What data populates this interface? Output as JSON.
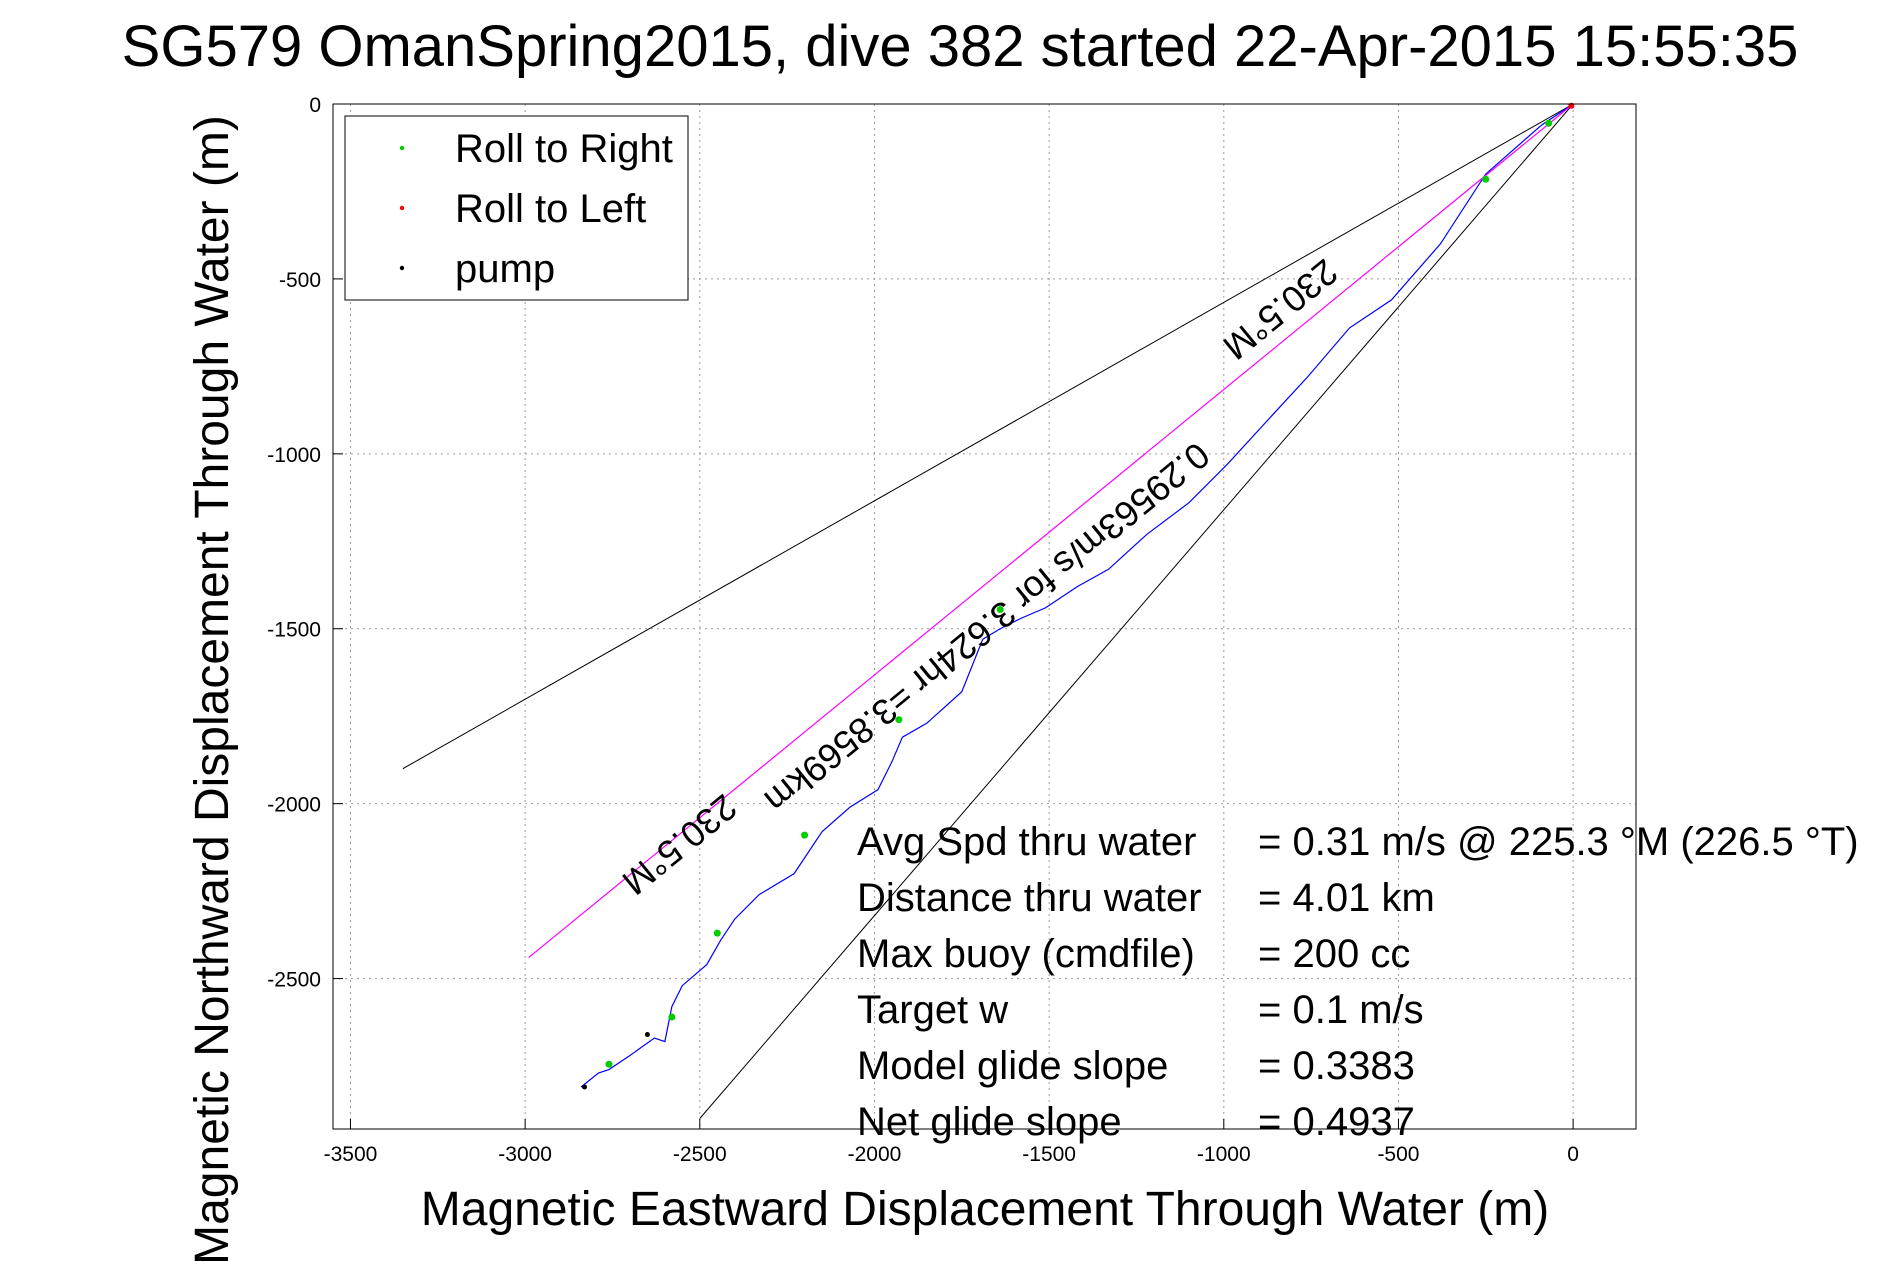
{
  "chart_data": {
    "type": "line",
    "title": "SG579 OmanSpring2015, dive 382 started 22-Apr-2015 15:55:35",
    "xlabel": "Magnetic Eastward Displacement Through Water (m)",
    "ylabel": "Magnetic Northward Displacement Through Water (m)",
    "xlim": [
      -3550,
      180
    ],
    "ylim": [
      -2930,
      0
    ],
    "xticks": [
      -3500,
      -3000,
      -2500,
      -2000,
      -1500,
      -1000,
      -500,
      0
    ],
    "yticks": [
      0,
      -500,
      -1000,
      -1500,
      -2000,
      -2500
    ],
    "grid": true,
    "legend": {
      "placement": "top-left",
      "entries": [
        {
          "label": "Roll to Right",
          "color": "#00cc00"
        },
        {
          "label": "Roll to Left",
          "color": "#ff0000"
        },
        {
          "label": "pump",
          "color": "#000000"
        }
      ]
    },
    "series": [
      {
        "color": "#0000ff",
        "x": [
          0,
          -90,
          -250,
          -380,
          -520,
          -640,
          -760,
          -880,
          -990,
          -1100,
          -1220,
          -1330,
          -1420,
          -1510,
          -1580,
          -1640,
          -1690,
          -1750,
          -1850,
          -1920,
          -1950,
          -1990,
          -2070,
          -2150,
          -2190,
          -2230,
          -2330,
          -2400,
          -2440,
          -2480,
          -2550,
          -2580,
          -2600,
          -2630,
          -2700,
          -2760,
          -2790,
          -2840
        ],
        "y": [
          0,
          -60,
          -200,
          -400,
          -560,
          -640,
          -780,
          -910,
          -1030,
          -1140,
          -1230,
          -1330,
          -1380,
          -1440,
          -1470,
          -1500,
          -1530,
          -1680,
          -1770,
          -1810,
          -1880,
          -1960,
          -2010,
          -2080,
          -2140,
          -2200,
          -2260,
          -2330,
          -2390,
          -2460,
          -2520,
          -2580,
          -2680,
          -2670,
          -2720,
          -2760,
          -2770,
          -2810
        ]
      },
      {
        "color": "#ff00ff",
        "x": [
          0,
          -2990
        ],
        "y": [
          0,
          -2440
        ]
      }
    ],
    "markers": {
      "roll_right": {
        "color": "#00cc00",
        "x": [
          -70,
          -250,
          -1640,
          -1930,
          -2200,
          -2450,
          -2580,
          -2760
        ],
        "y": [
          -55,
          -215,
          -1445,
          -1760,
          -2090,
          -2370,
          -2610,
          -2745
        ]
      },
      "roll_left": {
        "color": "#ff0000",
        "x": [
          -5
        ],
        "y": [
          -5
        ]
      },
      "pump": {
        "color": "#000000",
        "x": [
          -2830,
          -2650
        ],
        "y": [
          -2810,
          -2660
        ]
      }
    },
    "reference_lines": [
      {
        "color": "#000000",
        "x": [
          0,
          -3350
        ],
        "y": [
          0,
          -1900
        ]
      },
      {
        "color": "#000000",
        "x": [
          0,
          -2500
        ],
        "y": [
          0,
          -2900
        ]
      }
    ],
    "annotations": [
      {
        "text": "230.5°M",
        "x": -860,
        "y": -560
      },
      {
        "text": "0.29563m/s for 3.624hr =3.8569km",
        "x": -1700,
        "y": -1470
      },
      {
        "text": "230.5°M",
        "x": -2580,
        "y": -2090
      }
    ],
    "stats": [
      {
        "label": "Avg Spd thru water",
        "value": "=  0.31 m/s @ 225.3 °M (226.5 °T)"
      },
      {
        "label": "Distance thru water",
        "value": "=  4.01 km"
      },
      {
        "label": "Max buoy (cmdfile)",
        "value": "= 200 cc"
      },
      {
        "label": "Target w",
        "value": "= 0.1 m/s"
      },
      {
        "label": "Model glide slope",
        "value": "= 0.3383"
      },
      {
        "label": "Net glide slope",
        "value": "= 0.4937"
      }
    ]
  }
}
